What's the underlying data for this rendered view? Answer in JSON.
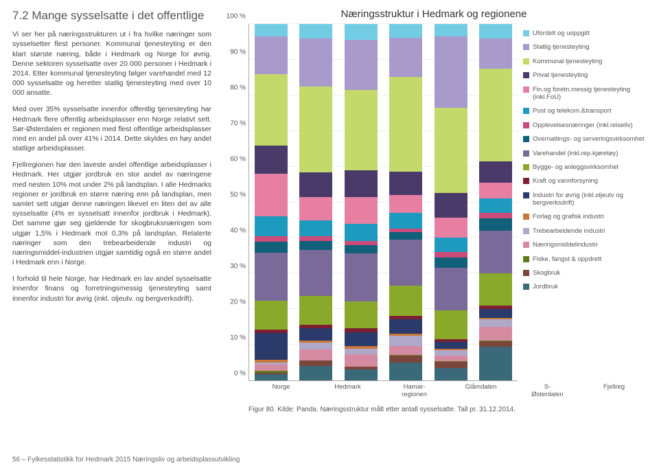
{
  "heading": "7.2 Mange sysselsatte i det offentlige",
  "paragraphs": [
    "Vi ser her på næringsstrukturen ut i fra hvilke næringer som sysselsetter flest personer. Kommunal tjenesteyting er den klart største næring, både i Hedmark og Norge for øvrig. Denne sektoren sysselsatte over 20 000 personer i Hedmark i 2014. Etter kommunal tjenesteyting følger varehandel med 12 000 sysselsatte og heretter statlig tjenesteyting med over 10 000 ansatte.",
    "Med over 35% sysselsatte innenfor offentlig tjenesteyting har Hedmark flere offentlig arbeidsplasser enn Norge relativt sett. Sør-Østerdalen er regionen med flest offentlige arbeidsplasser med en andel på over 41% i 2014. Dette skyldes en høy andel statlige arbeidsplasser.",
    "Fjellregionen har den laveste andel offentlige arbeidsplasser i Hedmark. Her utgjør jordbruk en stor andel av næringene med nesten 10% mot under 2% på landsplan. I alle Hedmarks regioner er jordbruk en større næring enn på landsplan, men samlet sett utgjør denne næringen likevel en liten del av alle sysselsatte (4% er sysselsatt innenfor jordbruk i Hedmark). Det samme gjør seg gjeldende for skogbruksnæringen som utgjør 1,5% i Hedmark mot 0,3% på landsplan. Relaterte næringer som den trebearbeidende industri og næringsmiddel-industrien utgjør samtidig også en større andel i Hedmark enn i Norge.",
    "I forhold til hele Norge, har Hedmark en lav andel sysselsatte innenfor finans og forretningsmessig tjenesteyting samt innenfor industri for øvrig (inkl. oljeutv. og bergverksdrift)."
  ],
  "chart": {
    "title": "Næringsstruktur i Hedmark og regionene",
    "y_ticks": [
      "0 %",
      "10 %",
      "20 %",
      "30 %",
      "40 %",
      "50 %",
      "60 %",
      "70 %",
      "80 %",
      "90 %",
      "100 %"
    ],
    "categories": [
      "Norge",
      "Hedmark",
      "Hamar-\nregionen",
      "Glåmdalen",
      "S-\nØsterdalen",
      "Fjellreg"
    ],
    "series_order": [
      "jordbruk",
      "skogbruk",
      "fiske",
      "naeringsmiddel",
      "trebearbeidende",
      "forlag",
      "industri",
      "kraft",
      "bygge",
      "varehandel",
      "overnatting",
      "opplevelse",
      "post",
      "fin",
      "privat",
      "kommunal",
      "statlig",
      "ufordelt"
    ],
    "series": {
      "ufordelt": {
        "label": "Ufordelt og uoppgitt",
        "color": "#72cde4"
      },
      "statlig": {
        "label": "Statlig tjenesteyting",
        "color": "#a89acb"
      },
      "kommunal": {
        "label": "Kommunal tjenesteyting",
        "color": "#c3d96a"
      },
      "privat": {
        "label": "Privat tjenesteyting",
        "color": "#4a3a6a"
      },
      "fin": {
        "label": "Fin.og foretn.messig tjenesteyting (inkl.FoU)",
        "color": "#e67fa2"
      },
      "post": {
        "label": "Post og telekom.&transport",
        "color": "#1f9abf"
      },
      "opplevelse": {
        "label": "Opplevelsesnæringer (inkl.reiseliv)",
        "color": "#cc4a7a"
      },
      "overnatting": {
        "label": "Overnattings- og serveringsvirksomhet",
        "color": "#0f6078"
      },
      "varehandel": {
        "label": "Varehandel (inkl.rep.kjøretøy)",
        "color": "#7a6a9a"
      },
      "bygge": {
        "label": "Bygge- og anleggsvirksomhet",
        "color": "#8aa82a"
      },
      "kraft": {
        "label": "Kraft og vannforsyning",
        "color": "#7a2030"
      },
      "industri": {
        "label": "Industri for øvrig (inkl.oljeutv og bergverksdrift)",
        "color": "#2a3a6a"
      },
      "forlag": {
        "label": "Forlag og grafisk industri",
        "color": "#c97a3a"
      },
      "trebearbeidende": {
        "label": "Trebearbeidende industri",
        "color": "#b0a8c8"
      },
      "naeringsmiddel": {
        "label": "Næringsmiddelindustri",
        "color": "#d48aa0"
      },
      "fiske": {
        "label": "Fiske, fangst & oppdrett",
        "color": "#5f7a1a"
      },
      "skogbruk": {
        "label": "Skogbruk",
        "color": "#7a453a"
      },
      "jordbruk": {
        "label": "Jordbruk",
        "color": "#3a6a7a"
      }
    },
    "data": {
      "Norge": {
        "jordbruk": 1.8,
        "skogbruk": 0.3,
        "fiske": 0.6,
        "naeringsmiddel": 1.8,
        "trebearbeidende": 0.5,
        "forlag": 0.8,
        "industri": 7.5,
        "kraft": 1.0,
        "bygge": 8.0,
        "varehandel": 13.5,
        "overnatting": 3.2,
        "opplevelse": 1.5,
        "post": 5.5,
        "fin": 12.0,
        "privat": 8.0,
        "kommunal": 20.0,
        "statlig": 10.5,
        "ufordelt": 3.5
      },
      "Hedmark": {
        "jordbruk": 4.0,
        "skogbruk": 1.5,
        "fiske": 0.1,
        "naeringsmiddel": 3.0,
        "trebearbeidende": 2.0,
        "forlag": 0.6,
        "industri": 3.5,
        "kraft": 1.0,
        "bygge": 8.0,
        "varehandel": 13.0,
        "overnatting": 2.5,
        "opplevelse": 1.2,
        "post": 4.5,
        "fin": 6.5,
        "privat": 7.0,
        "kommunal": 24.0,
        "statlig": 13.5,
        "ufordelt": 4.1
      },
      "Hamar-regionen": {
        "jordbruk": 3.0,
        "skogbruk": 0.8,
        "fiske": 0.1,
        "naeringsmiddel": 3.5,
        "trebearbeidende": 1.5,
        "forlag": 0.8,
        "industri": 3.8,
        "kraft": 1.2,
        "bygge": 7.5,
        "varehandel": 13.5,
        "overnatting": 2.3,
        "opplevelse": 1.2,
        "post": 4.8,
        "fin": 7.5,
        "privat": 7.5,
        "kommunal": 22.5,
        "statlig": 14.0,
        "ufordelt": 4.5
      },
      "Glåmdalen": {
        "jordbruk": 5.0,
        "skogbruk": 2.0,
        "fiske": 0.1,
        "naeringsmiddel": 2.5,
        "trebearbeidende": 3.0,
        "forlag": 0.5,
        "industri": 4.0,
        "kraft": 1.0,
        "bygge": 8.5,
        "varehandel": 13.0,
        "overnatting": 2.0,
        "opplevelse": 1.0,
        "post": 4.5,
        "fin": 5.0,
        "privat": 6.5,
        "kommunal": 26.5,
        "statlig": 11.0,
        "ufordelt": 3.9
      },
      "S-Østerdalen": {
        "jordbruk": 3.5,
        "skogbruk": 1.8,
        "fiske": 0.1,
        "naeringsmiddel": 1.5,
        "trebearbeidende": 1.5,
        "forlag": 0.4,
        "industri": 2.0,
        "kraft": 0.8,
        "bygge": 8.0,
        "varehandel": 12.0,
        "overnatting": 3.0,
        "opplevelse": 1.5,
        "post": 4.0,
        "fin": 5.5,
        "privat": 7.0,
        "kommunal": 24.0,
        "statlig": 20.0,
        "ufordelt": 3.4
      },
      "Fjellreg": {
        "jordbruk": 9.5,
        "skogbruk": 1.5,
        "fiske": 0.1,
        "naeringsmiddel": 4.0,
        "trebearbeidende": 2.0,
        "forlag": 0.4,
        "industri": 2.5,
        "kraft": 1.0,
        "bygge": 9.0,
        "varehandel": 12.0,
        "overnatting": 3.5,
        "opplevelse": 1.5,
        "post": 4.0,
        "fin": 4.5,
        "privat": 6.0,
        "kommunal": 26.0,
        "statlig": 8.5,
        "ufordelt": 4.0
      }
    },
    "caption": "Figur 80. Kilde: Panda. Næringsstruktur målt etter antall sysselsatte. Tall pr. 31.12.2014."
  },
  "footer": "56  –  Fylkesstatistikk for Hedmark 2015    Næringsliv og arbeidsplassutvikling"
}
